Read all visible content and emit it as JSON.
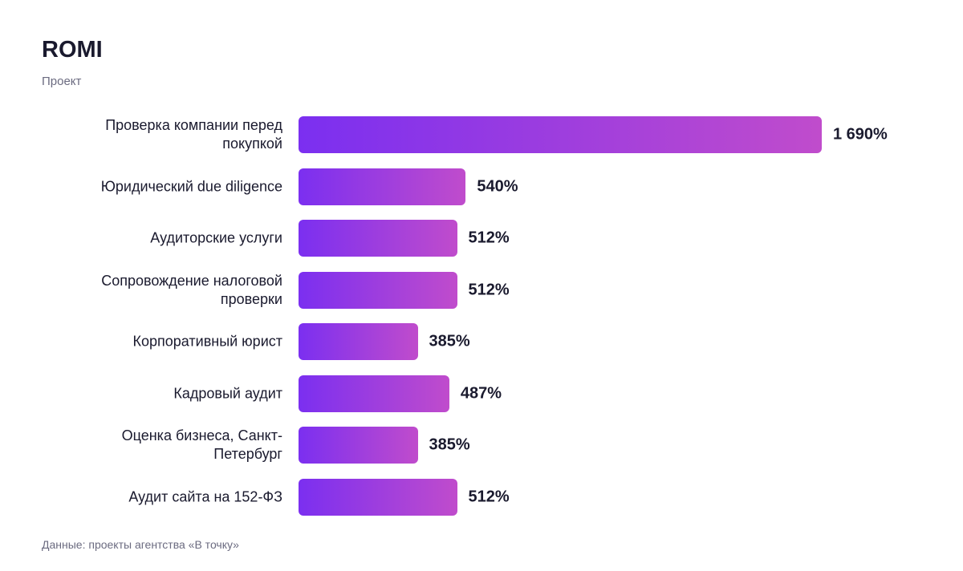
{
  "chart_data": {
    "type": "bar",
    "orientation": "horizontal",
    "title": "ROMI",
    "subtitle": "Проект",
    "categories": [
      "Проверка компании перед покупкой",
      "Юридический due diligence",
      "Аудиторские услуги",
      "Сопровождение налоговой проверки",
      "Корпоративный юрист",
      "Кадровый аудит",
      "Оценка бизнеса, Санкт-Петербург",
      "Аудит сайта на 152-ФЗ"
    ],
    "values": [
      1690,
      540,
      512,
      512,
      385,
      487,
      385,
      512
    ],
    "value_labels": [
      "1 690%",
      "540%",
      "512%",
      "512%",
      "385%",
      "487%",
      "385%",
      "512%"
    ],
    "colors": [
      "#7b2ff0",
      "#c04ccc"
    ],
    "source": "Данные: проекты агентства «В точку»"
  }
}
